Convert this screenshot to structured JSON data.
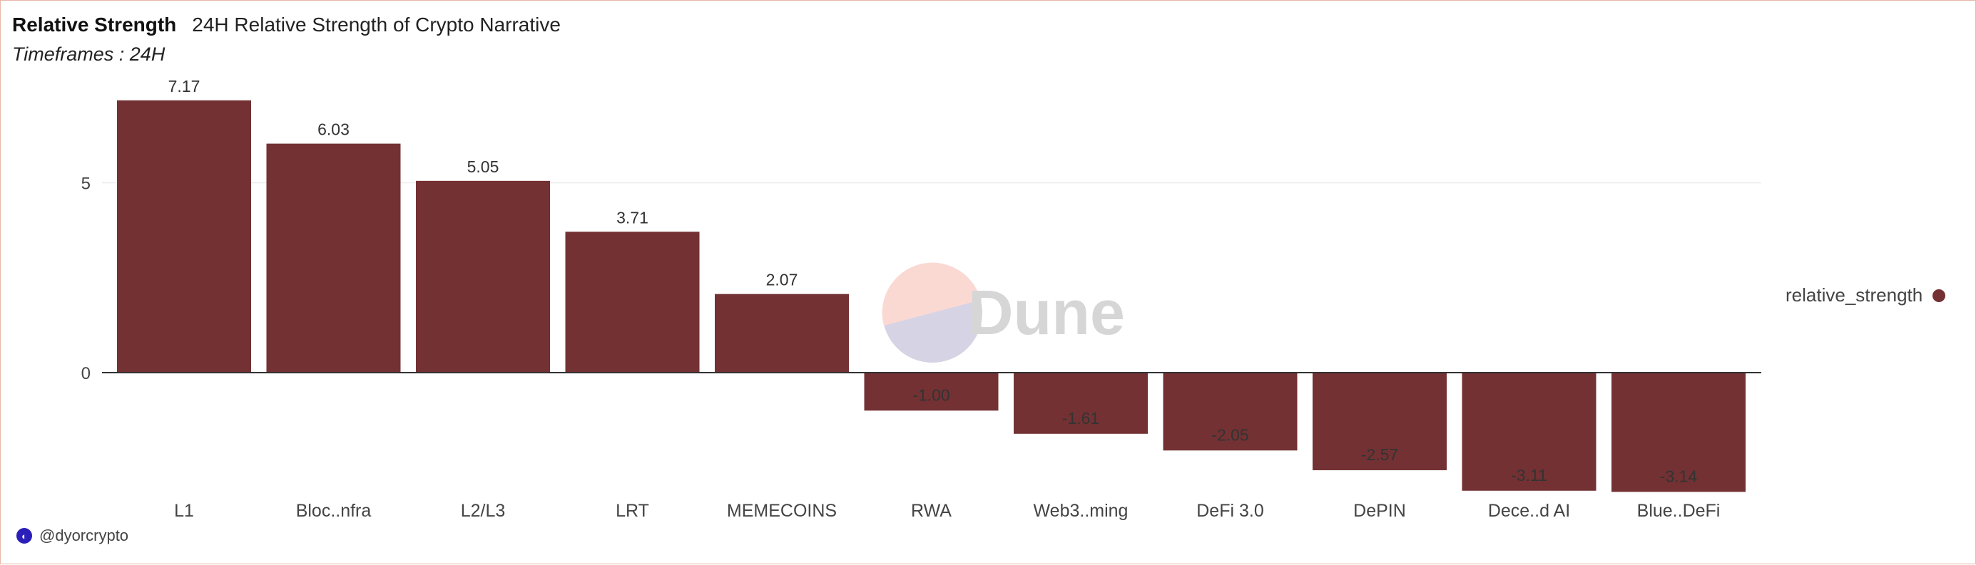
{
  "header": {
    "title": "Relative Strength",
    "subtitle": "24H Relative Strength of Crypto Narrative",
    "timeframe": "Timeframes : 24H"
  },
  "watermark": {
    "text": "Dune"
  },
  "legend": {
    "label": "relative_strength"
  },
  "footer": {
    "handle": "@dyorcrypto",
    "icon": "dune-logo-icon"
  },
  "colors": {
    "bar": "#733133",
    "grid": "#ececec",
    "zero_line": "#333333",
    "wm_top": "#fbd9d3",
    "wm_bottom": "#d6d3e5",
    "wm_text": "#d6d6d6"
  },
  "chart_data": {
    "type": "bar",
    "categories": [
      "L1",
      "Bloc..nfra",
      "L2/L3",
      "LRT",
      "MEMECOINS",
      "RWA",
      "Web3..ming",
      "DeFi 3.0",
      "DePIN",
      "Dece..d AI",
      "Blue..DeFi"
    ],
    "series": [
      {
        "name": "relative_strength",
        "values": [
          7.17,
          6.03,
          5.05,
          3.71,
          2.07,
          -1.0,
          -1.61,
          -2.05,
          -2.57,
          -3.11,
          -3.14
        ]
      }
    ],
    "data_labels": [
      "7.17",
      "6.03",
      "5.05",
      "3.71",
      "2.07",
      "-1.00",
      "-1.61",
      "-2.05",
      "-2.57",
      "-3.11",
      "-3.14"
    ],
    "yticks": [
      0,
      5
    ],
    "ylim": [
      -3.14,
      7.17
    ],
    "grid": true,
    "legend_position": "right"
  }
}
